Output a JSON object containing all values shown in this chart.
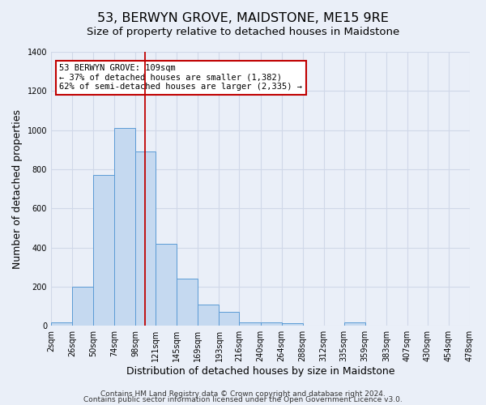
{
  "title": "53, BERWYN GROVE, MAIDSTONE, ME15 9RE",
  "subtitle": "Size of property relative to detached houses in Maidstone",
  "xlabel": "Distribution of detached houses by size in Maidstone",
  "ylabel": "Number of detached properties",
  "bin_edges": [
    2,
    26,
    50,
    74,
    98,
    121,
    145,
    169,
    193,
    216,
    240,
    264,
    288,
    312,
    335,
    359,
    383,
    407,
    430,
    454,
    478
  ],
  "bin_counts": [
    20,
    200,
    770,
    1010,
    890,
    420,
    240,
    110,
    70,
    20,
    20,
    15,
    0,
    0,
    20,
    0,
    0,
    0,
    0,
    0
  ],
  "bar_color": "#c5d9f0",
  "bar_edge_color": "#5b9bd5",
  "vline_x": 109,
  "vline_color": "#c00000",
  "annotation_line1": "53 BERWYN GROVE: 109sqm",
  "annotation_line2": "← 37% of detached houses are smaller (1,382)",
  "annotation_line3": "62% of semi-detached houses are larger (2,335) →",
  "annotation_box_color": "#c00000",
  "annotation_box_bg": "#ffffff",
  "ylim": [
    0,
    1400
  ],
  "yticks": [
    0,
    200,
    400,
    600,
    800,
    1000,
    1200,
    1400
  ],
  "tick_labels": [
    "2sqm",
    "26sqm",
    "50sqm",
    "74sqm",
    "98sqm",
    "121sqm",
    "145sqm",
    "169sqm",
    "193sqm",
    "216sqm",
    "240sqm",
    "264sqm",
    "288sqm",
    "312sqm",
    "335sqm",
    "359sqm",
    "383sqm",
    "407sqm",
    "430sqm",
    "454sqm",
    "478sqm"
  ],
  "footer_line1": "Contains HM Land Registry data © Crown copyright and database right 2024.",
  "footer_line2": "Contains public sector information licensed under the Open Government Licence v3.0.",
  "bg_color": "#eaeff8",
  "plot_bg_color": "#eaeff8",
  "grid_color": "#d0d8e8",
  "title_fontsize": 11.5,
  "subtitle_fontsize": 9.5,
  "axis_label_fontsize": 9,
  "tick_fontsize": 7,
  "footer_fontsize": 6.5
}
